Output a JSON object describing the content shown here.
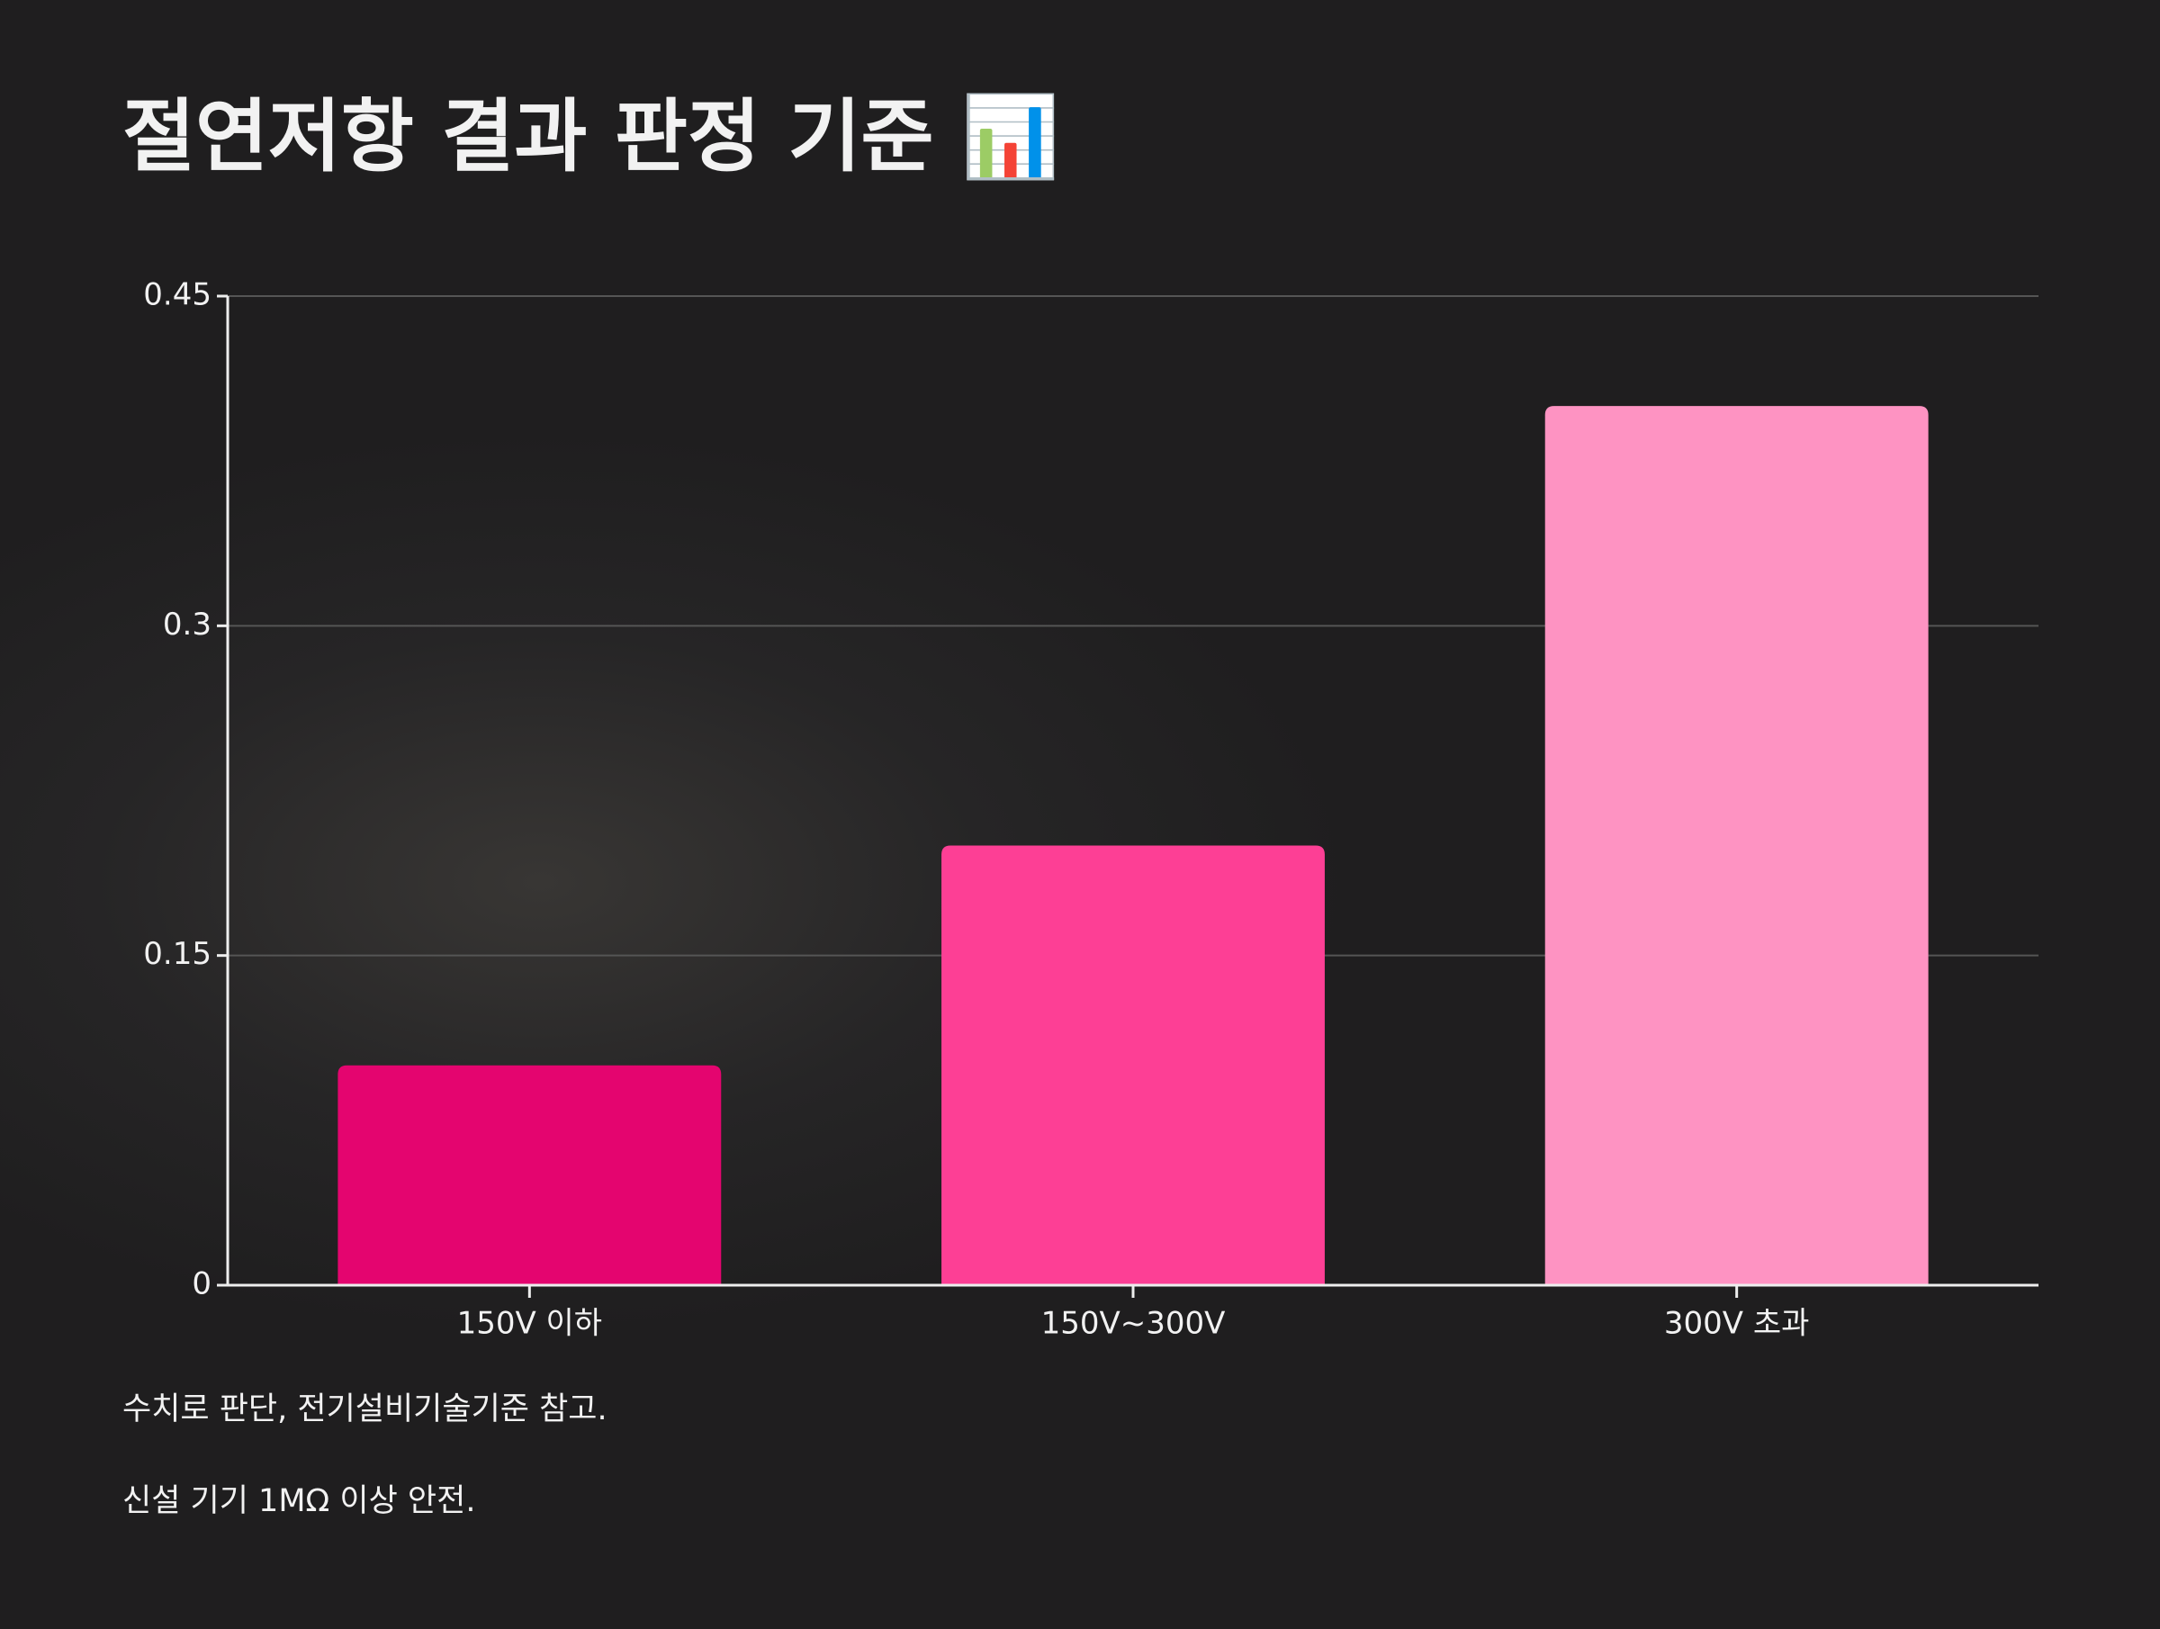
{
  "chart_data": {
    "type": "bar",
    "title": "절연저항 결과 판정 기준 📊",
    "categories": [
      "150V 이하",
      "150V~300V",
      "300V 초과"
    ],
    "values": [
      0.1,
      0.2,
      0.4
    ],
    "colors": [
      "#e4056f",
      "#fd3f95",
      "#fe93c2"
    ],
    "ylim": [
      0,
      0.45
    ],
    "yticks": [
      0,
      0.15,
      0.3,
      0.45
    ],
    "grid": true,
    "notes": [
      "수치로 판단, 전기설비기술기준 참고.",
      "신설 기기 1MΩ 이상 안전."
    ]
  }
}
